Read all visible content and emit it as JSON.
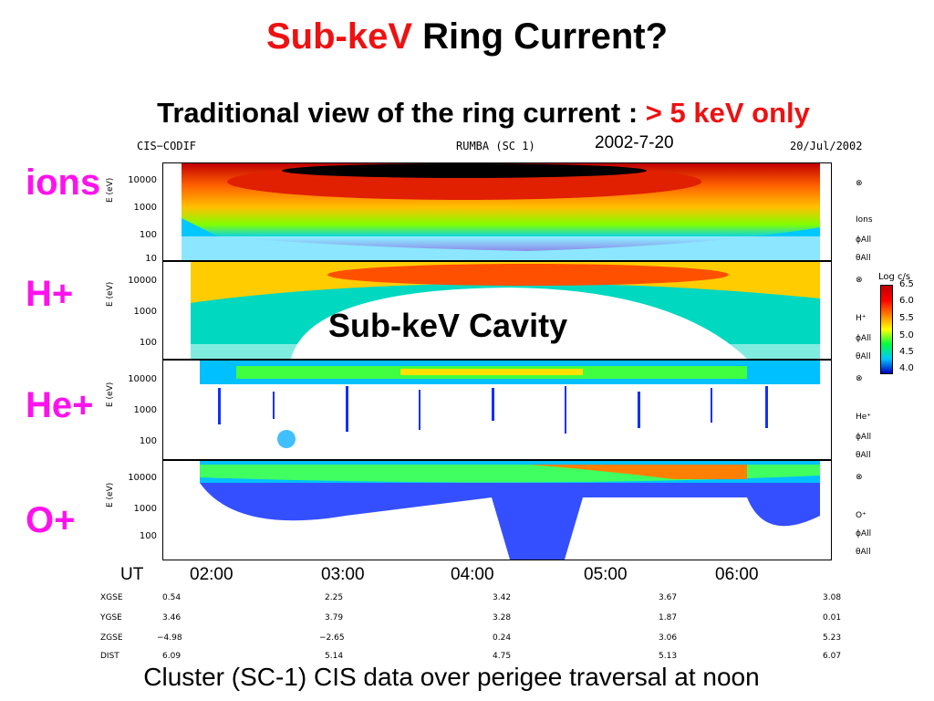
{
  "title": {
    "part1": "Sub-keV",
    "part2": "Ring Current?"
  },
  "subtitle": {
    "part1": "Traditional view of the ring current :",
    "part2": "> 5 keV only"
  },
  "header": {
    "left": "CIS−CODIF",
    "center": "RUMBA (SC 1)",
    "right": "20/Jul/2002",
    "date": "2002-7-20"
  },
  "species_labels": [
    "ions",
    "H+",
    "He+",
    "O+"
  ],
  "annotation": "Sub-keV Cavity",
  "y_axis_label": "E (eV)",
  "panels": [
    {
      "ticks": [
        "10000",
        "1000",
        "100",
        "10"
      ],
      "right_labels": [
        "⊗",
        "Ions",
        "ϕAll",
        "θAll"
      ]
    },
    {
      "ticks": [
        "10000",
        "1000",
        "100"
      ],
      "right_labels": [
        "⊗",
        "H⁺",
        "ϕAll",
        "θAll"
      ]
    },
    {
      "ticks": [
        "10000",
        "1000",
        "100"
      ],
      "right_labels": [
        "⊗",
        "He⁺",
        "ϕAll",
        "θAll"
      ]
    },
    {
      "ticks": [
        "10000",
        "1000",
        "100"
      ],
      "right_labels": [
        "⊗",
        "O⁺",
        "ϕAll",
        "θAll"
      ]
    }
  ],
  "colorbar": {
    "label": "Log c/s",
    "ticks": [
      "6.5",
      "6.0",
      "5.5",
      "5.0",
      "4.5",
      "4.0"
    ]
  },
  "time_axis": {
    "label": "UT",
    "ticks": [
      "02:00",
      "03:00",
      "04:00",
      "05:00",
      "06:00"
    ]
  },
  "orbit_table": {
    "rows": [
      {
        "name": "XGSE",
        "values": [
          "0.54",
          "2.25",
          "3.42",
          "3.67",
          "3.08"
        ]
      },
      {
        "name": "YGSE",
        "values": [
          "3.46",
          "3.79",
          "3.28",
          "1.87",
          "0.01"
        ]
      },
      {
        "name": "ZGSE",
        "values": [
          "−4.98",
          "−2.65",
          "0.24",
          "3.06",
          "5.23"
        ]
      },
      {
        "name": "DIST",
        "values": [
          "6.09",
          "5.14",
          "4.75",
          "5.13",
          "6.07"
        ]
      }
    ]
  },
  "caption": "Cluster (SC-1) CIS data over perigee traversal at noon",
  "colors": {
    "title_red": "#ee1111",
    "species_magenta": "#ff11ee"
  },
  "chart_data": {
    "type": "heatmap",
    "title": "RUMBA (SC 1)",
    "ylabel": "E (eV)",
    "y_scale": "log",
    "ylim": [
      10,
      30000
    ],
    "xlabel": "UT",
    "x_ticks": [
      "02:00",
      "03:00",
      "04:00",
      "05:00",
      "06:00"
    ],
    "panels": [
      "ions",
      "H+",
      "He+",
      "O+"
    ],
    "colorbar_label": "Log c/s",
    "colorbar_range": [
      4.0,
      6.5
    ]
  }
}
